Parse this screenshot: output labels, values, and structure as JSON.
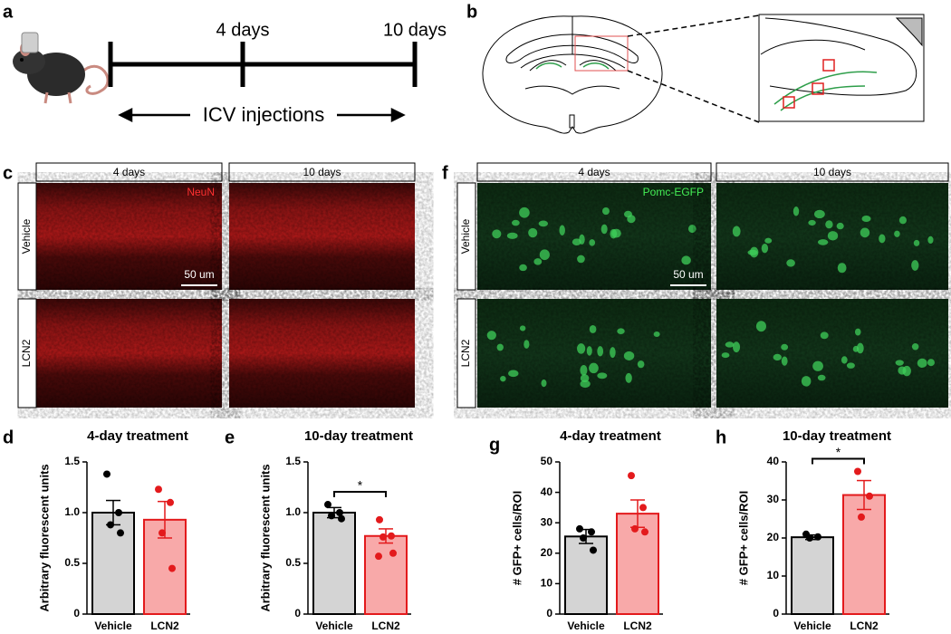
{
  "panel_labels": [
    "a",
    "b",
    "c",
    "f",
    "d",
    "e",
    "g",
    "h"
  ],
  "timeline": {
    "marks": [
      "4 days",
      "10 days"
    ],
    "label": "ICV injections"
  },
  "micrographs": [
    {
      "columns": [
        "4 days",
        "10 days"
      ],
      "rows": [
        "Vehicle",
        "LCN2"
      ],
      "stain": "NeuN",
      "scale_bar": "50 um"
    },
    {
      "columns": [
        "4 days",
        "10 days"
      ],
      "rows": [
        "Vehicle",
        "LCN2"
      ],
      "stain": "Pomc-EGFP",
      "scale_bar": "50 um"
    }
  ],
  "chart_data": [
    {
      "type": "bar",
      "title": "4-day treatment",
      "y_label": "Arbitrary fluorescent units",
      "categories": [
        "Vehicle",
        "LCN2"
      ],
      "values": [
        1.0,
        0.93
      ],
      "errors": [
        0.12,
        0.18
      ],
      "points": [
        [
          1.38,
          1.0,
          0.88,
          0.8
        ],
        [
          1.23,
          1.1,
          0.8,
          0.45
        ]
      ],
      "colors": [
        "#d4d4d4",
        "#f8a9a9"
      ],
      "edge_colors": [
        "#000000",
        "#e31a1c"
      ],
      "ylim": [
        0,
        1.5
      ],
      "yticks": [
        0,
        0.5,
        {
          "value": 1,
          "label": "1.0"
        },
        1.5
      ]
    },
    {
      "type": "bar",
      "title": "10-day treatment",
      "y_label": "Arbitrary fluorescent units",
      "categories": [
        "Vehicle",
        "LCN2"
      ],
      "values": [
        1.0,
        0.77
      ],
      "errors": [
        0.05,
        0.07
      ],
      "points": [
        [
          1.08,
          1.0,
          0.97,
          0.94
        ],
        [
          0.93,
          0.77,
          0.76,
          0.6,
          0.57
        ]
      ],
      "colors": [
        "#d4d4d4",
        "#f8a9a9"
      ],
      "edge_colors": [
        "#000000",
        "#e31a1c"
      ],
      "ylim": [
        0,
        1.5
      ],
      "yticks": [
        0,
        0.5,
        {
          "value": 1,
          "label": "1.0"
        },
        1.5
      ],
      "significance": "*"
    },
    {
      "type": "bar",
      "title": "4-day treatment",
      "y_label": "# GFP+ cells/ROI",
      "categories": [
        "Vehicle",
        "LCN2"
      ],
      "values": [
        25.5,
        33
      ],
      "errors": [
        2.3,
        4.5
      ],
      "points": [
        [
          28,
          27,
          25,
          21
        ],
        [
          45.5,
          35,
          28,
          27
        ]
      ],
      "colors": [
        "#d4d4d4",
        "#f8a9a9"
      ],
      "edge_colors": [
        "#000000",
        "#e31a1c"
      ],
      "ylim": [
        0,
        50
      ],
      "yticks": [
        0,
        10,
        20,
        30,
        40,
        50
      ]
    },
    {
      "type": "bar",
      "title": "10-day treatment",
      "y_label": "# GFP+ cells/ROI",
      "categories": [
        "Vehicle",
        "LCN2"
      ],
      "values": [
        20.2,
        31.3
      ],
      "errors": [
        0.6,
        3.8
      ],
      "points": [
        [
          21,
          20.3,
          20
        ],
        [
          37.5,
          31,
          25.5
        ]
      ],
      "colors": [
        "#d4d4d4",
        "#f8a9a9"
      ],
      "edge_colors": [
        "#000000",
        "#e31a1c"
      ],
      "ylim": [
        0,
        40
      ],
      "yticks": [
        0,
        10,
        20,
        30,
        40
      ],
      "significance": "*"
    }
  ]
}
